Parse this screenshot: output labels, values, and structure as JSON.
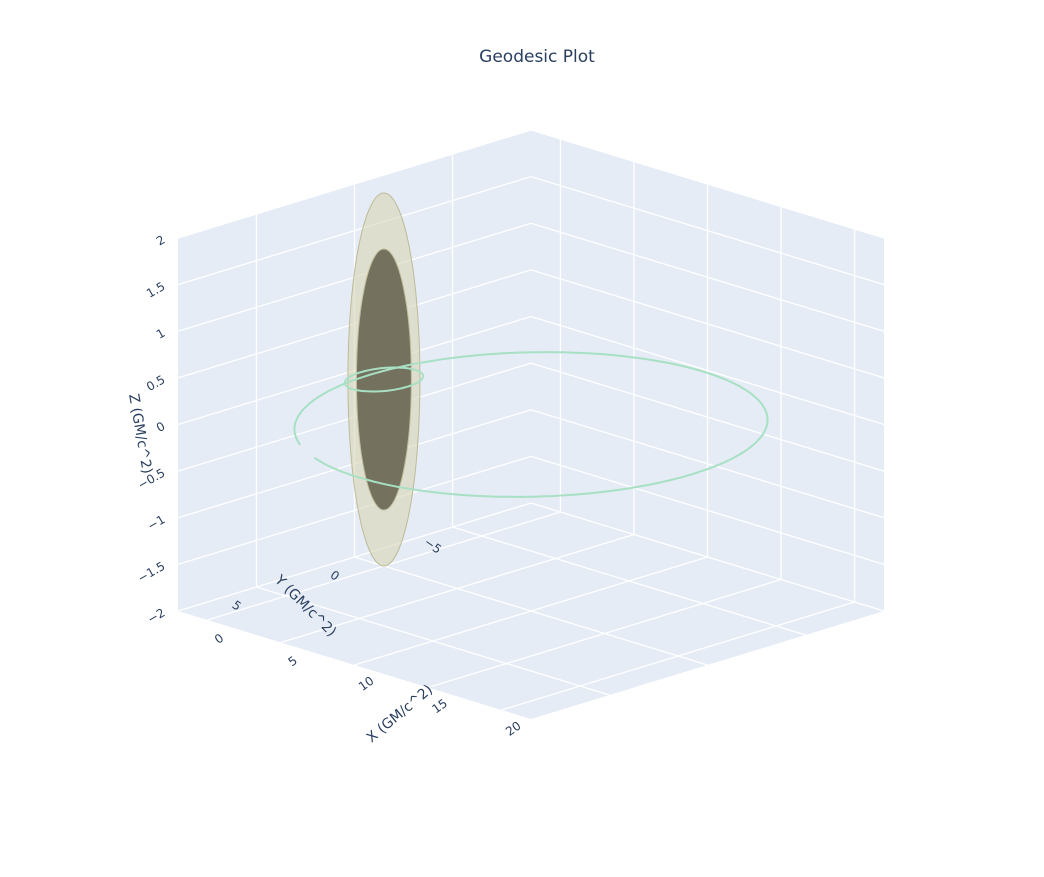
{
  "chart_data": {
    "type": "scatter3d",
    "title": "Geodesic Plot",
    "scene": {
      "background_color": "#e5ecf6",
      "grid_color": "#ffffff",
      "xaxis": {
        "title": "X (GM/c^2)",
        "ticks": [
          0,
          5,
          10,
          15,
          20
        ],
        "tick_labels": [
          "0",
          "5",
          "10",
          "15",
          "20"
        ],
        "range": [
          -2,
          22
        ]
      },
      "yaxis": {
        "title": "Y (GM/c^2)",
        "ticks": [
          -5,
          0,
          5
        ],
        "tick_labels": [
          "−5",
          "0",
          "5"
        ],
        "range": [
          -9,
          9
        ]
      },
      "zaxis": {
        "title": "Z (GM/c^2)",
        "ticks": [
          -2,
          -1.5,
          -1,
          -0.5,
          0,
          0.5,
          1,
          1.5,
          2
        ],
        "tick_labels": [
          "−2",
          "−1.5",
          "−1",
          "−0.5",
          "0",
          "0.5",
          "1",
          "1.5",
          "2"
        ],
        "range": [
          -2,
          2
        ]
      }
    },
    "traces": [
      {
        "kind": "geodesic-line",
        "color": "#a8e0c4",
        "description_points": "orbit around black hole in z=0 plane",
        "orbit_center": [
          10,
          0,
          0
        ],
        "orbit_radius": 11,
        "inner_loop_radius": 1.6,
        "inner_loop_center": [
          0,
          0,
          0
        ]
      },
      {
        "kind": "ergosphere-surface",
        "color": "#d8d6b4",
        "opacity": 0.6,
        "center": [
          0,
          0,
          0
        ],
        "radius_xy": 0.7,
        "radius_z": 2.0
      },
      {
        "kind": "event-horizon-surface",
        "color": "#6e6b58",
        "opacity": 0.95,
        "center": [
          0,
          0,
          0
        ],
        "radius_xy": 0.45,
        "radius_z": 1.4
      }
    ]
  }
}
